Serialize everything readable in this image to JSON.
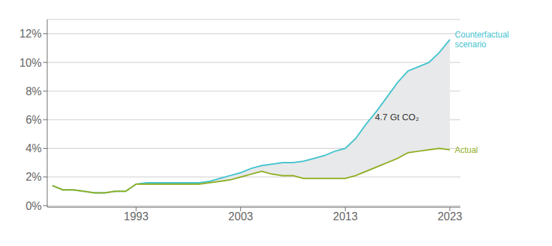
{
  "chart_data": {
    "type": "line",
    "color": "#E8E9EA",
    "x": [
      1985,
      1986,
      1987,
      1988,
      1989,
      1990,
      1991,
      1992,
      1993,
      1994,
      1995,
      1996,
      1997,
      1998,
      1999,
      2000,
      2001,
      2002,
      2003,
      2004,
      2005,
      2006,
      2007,
      2008,
      2009,
      2010,
      2011,
      2012,
      2013,
      2014,
      2015,
      2016,
      2017,
      2018,
      2019,
      2020,
      2021,
      2022,
      2023
    ],
    "series": [
      {
        "name": "Counterfactual\nscenario",
        "color": "#45C4CF",
        "values": [
          0.014,
          0.011,
          0.011,
          0.01,
          0.009,
          0.009,
          0.01,
          0.01,
          0.015,
          0.016,
          0.016,
          0.016,
          0.016,
          0.016,
          0.016,
          0.017,
          0.019,
          0.021,
          0.023,
          0.026,
          0.028,
          0.029,
          0.03,
          0.03,
          0.031,
          0.033,
          0.035,
          0.038,
          0.04,
          0.047,
          0.057,
          0.066,
          0.076,
          0.086,
          0.094,
          0.097,
          0.1,
          0.107,
          0.116
        ]
      },
      {
        "name": "Actual",
        "color": "#8FAF23",
        "values": [
          0.014,
          0.011,
          0.011,
          0.01,
          0.009,
          0.009,
          0.01,
          0.01,
          0.015,
          0.015,
          0.015,
          0.015,
          0.015,
          0.015,
          0.015,
          0.016,
          0.017,
          0.018,
          0.02,
          0.022,
          0.024,
          0.022,
          0.021,
          0.021,
          0.019,
          0.019,
          0.019,
          0.019,
          0.019,
          0.021,
          0.024,
          0.027,
          0.03,
          0.033,
          0.037,
          0.038,
          0.039,
          0.04,
          0.039
        ]
      }
    ],
    "xlim": [
      1984.5,
      2024
    ],
    "xticks": [
      1993,
      2003,
      2013,
      2023
    ],
    "ylim": [
      -0.001,
      0.13
    ],
    "yticks": [
      {
        "value": 0,
        "label": "0%"
      },
      {
        "value": 0.02,
        "label": "2%"
      },
      {
        "value": 0.04,
        "label": "4%"
      },
      {
        "value": 0.06,
        "label": "6%"
      },
      {
        "value": 0.08,
        "label": "8%"
      },
      {
        "value": 0.1,
        "label": "10%"
      },
      {
        "value": 0.12,
        "label": "12%"
      }
    ],
    "grid": true,
    "annotations": [
      {
        "text": "4.7 Gt CO₂",
        "x": 2015.5,
        "y": 0.062
      }
    ]
  }
}
